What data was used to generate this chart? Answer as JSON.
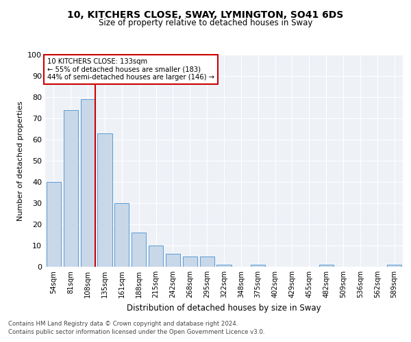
{
  "title1": "10, KITCHERS CLOSE, SWAY, LYMINGTON, SO41 6DS",
  "title2": "Size of property relative to detached houses in Sway",
  "xlabel": "Distribution of detached houses by size in Sway",
  "ylabel": "Number of detached properties",
  "categories": [
    "54sqm",
    "81sqm",
    "108sqm",
    "135sqm",
    "161sqm",
    "188sqm",
    "215sqm",
    "242sqm",
    "268sqm",
    "295sqm",
    "322sqm",
    "348sqm",
    "375sqm",
    "402sqm",
    "429sqm",
    "455sqm",
    "482sqm",
    "509sqm",
    "536sqm",
    "562sqm",
    "589sqm"
  ],
  "values": [
    40,
    74,
    79,
    63,
    30,
    16,
    10,
    6,
    5,
    5,
    1,
    0,
    1,
    0,
    0,
    0,
    1,
    0,
    0,
    0,
    1
  ],
  "bar_color": "#c8d8e8",
  "bar_edge_color": "#5b9bd5",
  "marker_label1": "10 KITCHERS CLOSE: 133sqm",
  "marker_label2": "← 55% of detached houses are smaller (183)",
  "marker_label3": "44% of semi-detached houses are larger (146) →",
  "marker_color": "#cc0000",
  "ylim": [
    0,
    100
  ],
  "yticks": [
    0,
    10,
    20,
    30,
    40,
    50,
    60,
    70,
    80,
    90,
    100
  ],
  "footnote1": "Contains HM Land Registry data © Crown copyright and database right 2024.",
  "footnote2": "Contains public sector information licensed under the Open Government Licence v3.0.",
  "bg_color": "#eef2f7"
}
